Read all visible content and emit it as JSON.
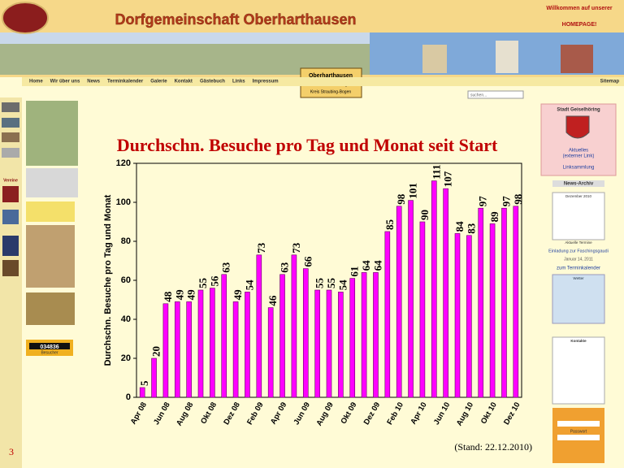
{
  "header": {
    "title": "Dorfgemeinschaft Oberharthausen",
    "welcome": "Willkommen auf unserer",
    "homepage": "HOMEPAGE!"
  },
  "nav": [
    "Home",
    "Wir über uns",
    "News",
    "Terminkalender",
    "Galerie",
    "Kontakt",
    "Gästebuch",
    "Links",
    "Impressum"
  ],
  "sitemap": "Sitemap",
  "location": {
    "name": "Oberharthausen",
    "city": "Stadt Geiselhöring",
    "district": "Kreis Straubing-Bogen"
  },
  "search": "suchen...",
  "sidebar_left": {
    "clubs": "Vereine",
    "counter": "034836",
    "visitors": "Besucher"
  },
  "sidebar_right": {
    "city": "Stadt Geiselhöring",
    "news": "Aktuelles",
    "external": "(externer Link)",
    "links": "Linksammlung",
    "archive": "News-Archiv",
    "month": "Dezember 2010",
    "events": "Aktuelle Termine",
    "event": "Einladung zur Faschingsgaudi",
    "event_date": "Januar 14, 2011",
    "calendar": "zum Terminkalender",
    "weather": "Wetter",
    "contacts": "Kontakte",
    "login": "Passwort"
  },
  "chart_data": {
    "type": "bar",
    "title": "Durchschn. Besuche pro Tag und Monat seit Start",
    "y_label": "Durchschn. Besuche pro Tag und Monat",
    "categories": [
      "Apr 08",
      null,
      "Jun 08",
      null,
      "Aug 08",
      null,
      "Okt 08",
      null,
      "Dez 08",
      null,
      "Feb 09",
      null,
      "Apr 09",
      null,
      "Jun 09",
      null,
      "Aug 09",
      null,
      "Okt 09",
      null,
      "Dez 09",
      null,
      "Feb 10",
      null,
      "Apr 10",
      null,
      "Jun 10",
      null,
      "Aug 10",
      null,
      "Okt 10",
      null,
      "Dez 10"
    ],
    "values": [
      5,
      20,
      48,
      49,
      49,
      55,
      56,
      63,
      49,
      54,
      73,
      46,
      63,
      73,
      66,
      55,
      55,
      54,
      61,
      64,
      64,
      85,
      98,
      101,
      90,
      111,
      107,
      84,
      83,
      97,
      89,
      97,
      98
    ],
    "color": "#ff00ff",
    "ylim": [
      0,
      120
    ],
    "yticks": [
      0,
      20,
      40,
      60,
      80,
      100,
      120
    ],
    "grid": false
  },
  "footnote": "(Stand: 22.12.2010)",
  "page_number": "3"
}
